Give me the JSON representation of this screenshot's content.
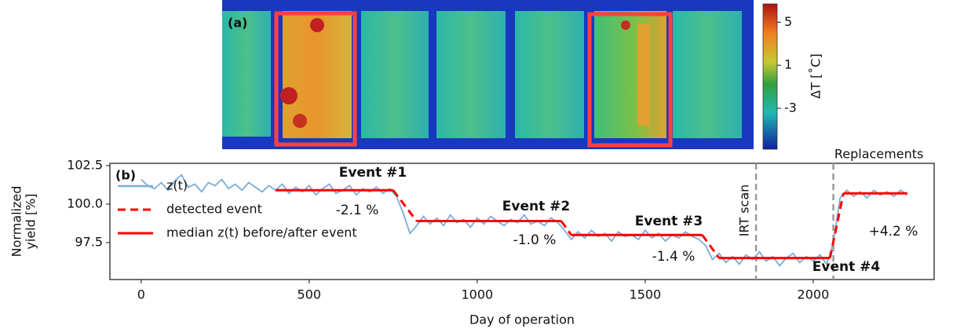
{
  "chart_data": [
    {
      "type": "heatmap-image",
      "panel_label": "(a)",
      "colorbar": {
        "label": "ΔT [˚C]",
        "lim": [
          -6.8,
          6.7
        ],
        "ticks": [
          5,
          1,
          -3
        ]
      }
    },
    {
      "type": "line",
      "panel_label": "(b)",
      "xlabel": "Day of operation",
      "ylabel": [
        "Normalized",
        "yield [%]"
      ],
      "xlim": [
        -93,
        2360
      ],
      "ylim": [
        95.1,
        102.65
      ],
      "xticks": [
        0,
        500,
        1000,
        1500,
        2000
      ],
      "yticks": [
        97.5,
        {
          "value": 100,
          "label": "100.0"
        },
        102.5
      ],
      "series": [
        {
          "name": "z(t)",
          "color": "#7aaed6",
          "dashed": false,
          "x": [
            0,
            20,
            40,
            60,
            80,
            100,
            120,
            140,
            160,
            180,
            200,
            220,
            240,
            260,
            280,
            300,
            320,
            340,
            360,
            380,
            400,
            420,
            440,
            460,
            480,
            500,
            520,
            540,
            560,
            580,
            600,
            620,
            640,
            660,
            680,
            700,
            720,
            740,
            760,
            780,
            800,
            820,
            840,
            860,
            880,
            900,
            920,
            940,
            960,
            980,
            1000,
            1020,
            1040,
            1060,
            1080,
            1100,
            1120,
            1140,
            1160,
            1180,
            1200,
            1220,
            1240,
            1260,
            1280,
            1300,
            1320,
            1340,
            1360,
            1380,
            1400,
            1420,
            1440,
            1460,
            1480,
            1500,
            1520,
            1540,
            1560,
            1580,
            1600,
            1620,
            1640,
            1660,
            1680,
            1700,
            1720,
            1740,
            1760,
            1780,
            1800,
            1820,
            1840,
            1860,
            1880,
            1900,
            1920,
            1940,
            1960,
            1980,
            2000,
            2020,
            2040,
            2060,
            2080,
            2100,
            2120,
            2140,
            2160,
            2180,
            2200,
            2220,
            2240,
            2260,
            2280
          ],
          "values": [
            101.6,
            101.2,
            101.0,
            101.4,
            100.9,
            101.5,
            101.9,
            101.1,
            101.3,
            100.8,
            101.4,
            101.2,
            101.6,
            101.0,
            101.3,
            100.9,
            101.4,
            101.1,
            100.8,
            101.2,
            100.9,
            101.3,
            100.7,
            101.1,
            100.8,
            101.2,
            100.6,
            101.0,
            101.3,
            100.7,
            100.9,
            101.2,
            100.6,
            101.0,
            100.8,
            101.1,
            100.7,
            101.0,
            100.5,
            99.4,
            98.1,
            98.6,
            99.2,
            98.7,
            99.1,
            98.6,
            99.3,
            98.8,
            99.0,
            98.5,
            99.1,
            98.7,
            99.2,
            98.9,
            98.6,
            99.0,
            98.8,
            99.3,
            98.7,
            98.9,
            98.6,
            99.1,
            98.8,
            98.3,
            97.7,
            98.2,
            97.8,
            98.3,
            97.9,
            98.1,
            97.6,
            98.2,
            97.9,
            98.0,
            97.7,
            98.3,
            97.8,
            98.1,
            97.6,
            98.0,
            97.8,
            98.2,
            97.9,
            97.7,
            97.3,
            96.4,
            96.8,
            96.2,
            96.6,
            96.1,
            96.7,
            96.4,
            96.9,
            96.3,
            96.6,
            96.0,
            96.5,
            96.8,
            96.2,
            96.6,
            96.3,
            96.7,
            96.1,
            97.5,
            100.4,
            100.9,
            100.5,
            100.8,
            100.4,
            100.9,
            100.6,
            100.8,
            100.5,
            100.9,
            100.6
          ]
        },
        {
          "name": "detected event",
          "color": "#ff0000",
          "dashed": true,
          "x": [
            750,
            820,
            null,
            1250,
            1280,
            null,
            1670,
            1720,
            null,
            2050,
            2090
          ],
          "values": [
            100.9,
            98.9,
            null,
            98.9,
            98.0,
            null,
            98.0,
            96.5,
            null,
            96.5,
            100.7
          ]
        },
        {
          "name": "median z(t) before/after event",
          "color": "#ff0000",
          "dashed": false,
          "x": [
            400,
            750,
            null,
            820,
            1250,
            null,
            1280,
            1670,
            null,
            1720,
            2050,
            null,
            2090,
            2280
          ],
          "values": [
            100.9,
            100.9,
            null,
            98.9,
            98.9,
            null,
            98.0,
            98.0,
            null,
            96.5,
            96.5,
            null,
            100.7,
            100.7
          ]
        }
      ],
      "vlines": [
        {
          "x": 1830,
          "label": "IRT scan",
          "color": "#999999"
        },
        {
          "x": 2060,
          "label": "Replacements",
          "color": "#999999"
        }
      ],
      "annotations": [
        "Event #1",
        "-2.1 %",
        "Event #2",
        "-1.0 %",
        "Event #3",
        "-1.4 %",
        "Event #4",
        "+4.2 %"
      ]
    }
  ]
}
